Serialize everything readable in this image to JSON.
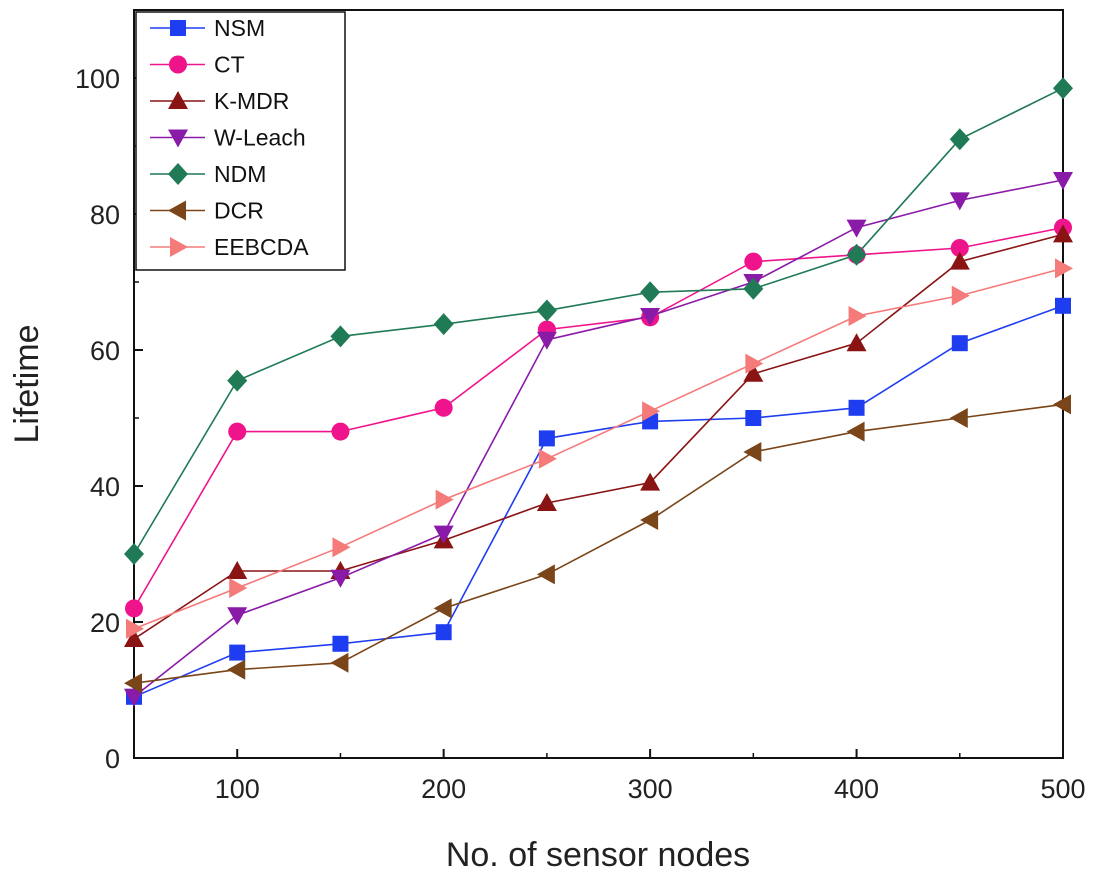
{
  "chart_data": {
    "type": "line",
    "title": "",
    "xlabel": "No. of sensor nodes",
    "ylabel": "Lifetime",
    "xlim": [
      50,
      500
    ],
    "ylim": [
      0,
      110
    ],
    "x_ticks": [
      100,
      200,
      300,
      400,
      500
    ],
    "y_ticks": [
      0,
      20,
      40,
      60,
      80,
      100
    ],
    "grid": false,
    "legend_position": "top-left",
    "x": [
      50,
      100,
      150,
      200,
      250,
      300,
      350,
      400,
      450,
      500
    ],
    "series": [
      {
        "name": "NSM",
        "color": "#1f3df0",
        "marker": "square",
        "values": [
          9,
          15.5,
          16.8,
          18.5,
          47,
          49.5,
          50,
          51.5,
          61,
          66.5
        ]
      },
      {
        "name": "CT",
        "color": "#f0148c",
        "marker": "circle",
        "values": [
          22,
          48,
          48,
          51.5,
          63,
          64.8,
          73,
          74,
          75,
          78
        ]
      },
      {
        "name": "K-MDR",
        "color": "#8a1414",
        "marker": "triangle-up",
        "values": [
          17.5,
          27.5,
          27.5,
          32,
          37.5,
          40.5,
          56.5,
          61,
          73,
          77
        ]
      },
      {
        "name": "W-Leach",
        "color": "#8a1aa8",
        "marker": "triangle-down",
        "values": [
          9,
          21,
          26.5,
          33,
          61.5,
          65,
          70,
          78,
          82,
          85
        ]
      },
      {
        "name": "NDM",
        "color": "#1f7a55",
        "marker": "diamond",
        "values": [
          30,
          55.5,
          62,
          63.8,
          65.8,
          68.5,
          69,
          74,
          91,
          98.5
        ]
      },
      {
        "name": "DCR",
        "color": "#7a4518",
        "marker": "triangle-left",
        "values": [
          11,
          13,
          14,
          22,
          27,
          35,
          45,
          48,
          50,
          52
        ]
      },
      {
        "name": "EEBCDA",
        "color": "#f57a7a",
        "marker": "triangle-right",
        "values": [
          19,
          25,
          31,
          38,
          44,
          51,
          58,
          65,
          68,
          72
        ]
      }
    ]
  }
}
